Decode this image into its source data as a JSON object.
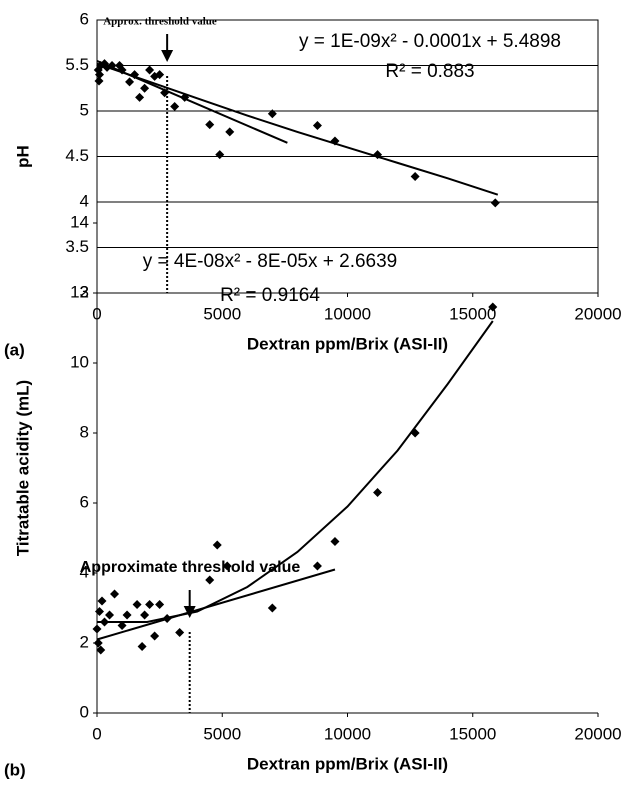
{
  "chart_data": [
    {
      "type": "scatter",
      "panel": "(a)",
      "ylabel": "pH",
      "xlabel": "Dextran ppm/Brix (ASI-II)",
      "equation": "y = 1E-09x² - 0.0001x + 5.4898",
      "r2": "R² = 0.883",
      "annotation": "Approx. threshold value",
      "threshold_x": 2800,
      "xlim": [
        0,
        20000
      ],
      "xticks": [
        0,
        5000,
        10000,
        15000,
        20000
      ],
      "ylim": [
        3,
        6
      ],
      "yticks": [
        3,
        3.5,
        4,
        4.5,
        5,
        5.5,
        6
      ],
      "grid": true,
      "frame": true,
      "color": "#000000",
      "x": [
        50,
        80,
        100,
        150,
        300,
        400,
        600,
        900,
        1000,
        1300,
        1500,
        1700,
        1900,
        2100,
        2300,
        2500,
        2700,
        3100,
        3500,
        4500,
        4900,
        5300,
        7000,
        8800,
        9500,
        11200,
        12700,
        15900
      ],
      "values": [
        5.45,
        5.33,
        5.4,
        5.5,
        5.52,
        5.48,
        5.5,
        5.5,
        5.45,
        5.32,
        5.4,
        5.15,
        5.25,
        5.45,
        5.38,
        5.4,
        5.2,
        5.05,
        5.15,
        4.85,
        4.52,
        4.77,
        4.97,
        4.84,
        4.67,
        4.52,
        4.28,
        3.99
      ],
      "trendlines": [
        {
          "x": [
            0,
            2000,
            4000,
            6000,
            8000,
            10000,
            12000,
            14000,
            16000
          ],
          "values": [
            5.52,
            5.33,
            5.14,
            4.95,
            4.77,
            4.6,
            4.43,
            4.26,
            4.08
          ]
        },
        {
          "x": [
            0,
            7600
          ],
          "values": [
            5.55,
            4.65
          ]
        }
      ]
    },
    {
      "type": "scatter",
      "panel": "(b)",
      "ylabel": "Titratable acidity (mL)",
      "xlabel": "Dextran ppm/Brix (ASI-II)",
      "equation": "y = 4E-08x² - 8E-05x + 2.6639",
      "r2": "R² = 0.9164",
      "annotation": "Approximate threshold value",
      "threshold_x": 3700,
      "xlim": [
        0,
        20000
      ],
      "xticks": [
        0,
        5000,
        10000,
        15000,
        20000
      ],
      "ylim": [
        0,
        14
      ],
      "yticks": [
        0,
        2,
        4,
        6,
        8,
        10,
        12,
        14
      ],
      "grid": false,
      "frame": false,
      "color": "#000000",
      "x": [
        0,
        50,
        100,
        150,
        200,
        300,
        500,
        700,
        1000,
        1200,
        1600,
        1800,
        1900,
        2100,
        2300,
        2500,
        2800,
        3300,
        4500,
        4800,
        5200,
        7000,
        8800,
        9500,
        11200,
        12700,
        15800
      ],
      "values": [
        2.4,
        2.0,
        2.9,
        1.8,
        3.2,
        2.6,
        2.8,
        3.4,
        2.5,
        2.8,
        3.1,
        1.9,
        2.8,
        3.1,
        2.2,
        3.1,
        2.7,
        2.3,
        3.8,
        4.8,
        4.2,
        3.0,
        4.2,
        4.9,
        6.3,
        8.0,
        11.6
      ],
      "trendlines": [
        {
          "x": [
            0,
            2000,
            4000,
            6000,
            8000,
            10000,
            12000,
            14000,
            15800
          ],
          "values": [
            2.6,
            2.6,
            2.9,
            3.6,
            4.6,
            5.9,
            7.5,
            9.4,
            11.2
          ]
        },
        {
          "x": [
            0,
            9500
          ],
          "values": [
            2.1,
            4.1
          ]
        }
      ]
    }
  ]
}
